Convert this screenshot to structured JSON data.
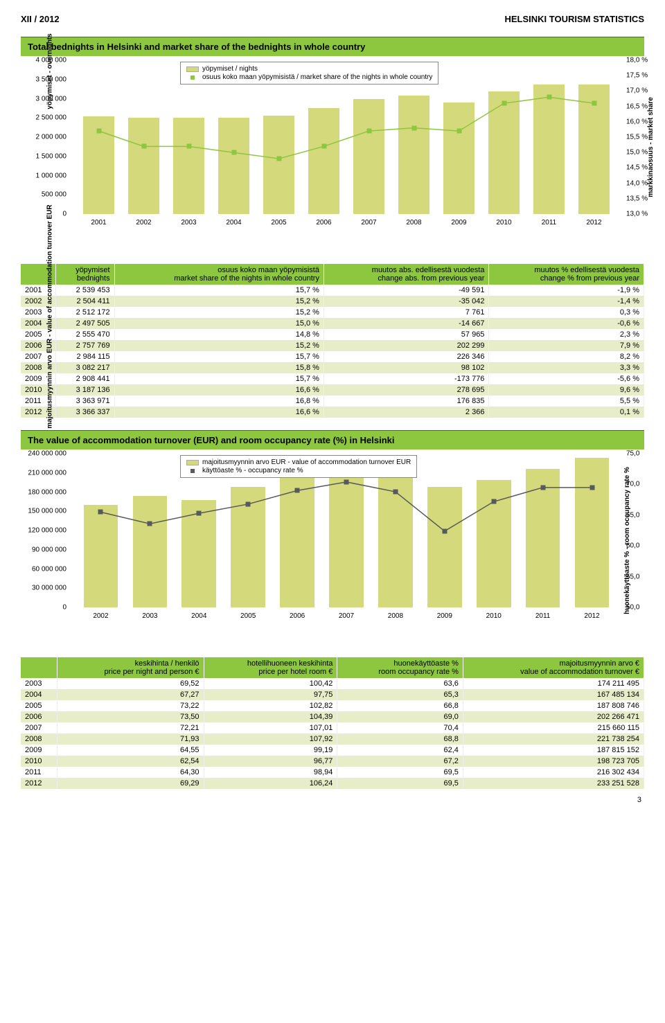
{
  "header": {
    "left": "XII / 2012",
    "right": "HELSINKI TOURISM STATISTICS"
  },
  "section1": {
    "title": "Total bednights in Helsinki and market share of the bednights in whole country",
    "chart": {
      "type": "bar+line",
      "years": [
        "2001",
        "2002",
        "2003",
        "2004",
        "2005",
        "2006",
        "2007",
        "2008",
        "2009",
        "2010",
        "2011",
        "2012"
      ],
      "bars": [
        2539453,
        2504411,
        2512172,
        2497505,
        2555470,
        2757769,
        2984115,
        3082217,
        2908441,
        3187136,
        3363971,
        3366337
      ],
      "line_pct": [
        15.7,
        15.2,
        15.2,
        15.0,
        14.8,
        15.2,
        15.7,
        15.8,
        15.7,
        16.6,
        16.8,
        16.6
      ],
      "y_left_max": 4000000,
      "y_left_step": 500000,
      "y_left_ticks": [
        "0",
        "500 000",
        "1 000 000",
        "1 500 000",
        "2 000 000",
        "2 500 000",
        "3 000 000",
        "3 500 000",
        "4 000 000"
      ],
      "y_right_min": 13.0,
      "y_right_max": 18.0,
      "y_right_step": 0.5,
      "y_right_ticks": [
        "13,0 %",
        "13,5 %",
        "14,0 %",
        "14,5 %",
        "15,0 %",
        "15,5 %",
        "16,0 %",
        "16,5 %",
        "17,0 %",
        "17,5 %",
        "18,0 %"
      ],
      "bar_color": "#d4d97b",
      "marker_color": "#8dc63f",
      "line_color": "#8dc63f",
      "y_left_title": "yöpymiset - overnights",
      "y_right_title": "markkinaosuus - market share",
      "legend1": "yöpymiset / nights",
      "legend2": "osuus koko maan yöpymisistä / market share of the nights in whole country"
    },
    "table": {
      "headers": [
        "",
        "yöpymiset\nbednights",
        "osuus koko maan yöpymisistä\nmarket share of the nights in whole country",
        "muutos abs. edellisestä vuodesta\nchange abs. from previous year",
        "muutos % edellisestä vuodesta\nchange % from previous year"
      ],
      "rows": [
        [
          "2001",
          "2 539 453",
          "15,7 %",
          "-49 591",
          "-1,9 %"
        ],
        [
          "2002",
          "2 504 411",
          "15,2 %",
          "-35 042",
          "-1,4 %"
        ],
        [
          "2003",
          "2 512 172",
          "15,2 %",
          "7 761",
          "0,3 %"
        ],
        [
          "2004",
          "2 497 505",
          "15,0 %",
          "-14 667",
          "-0,6 %"
        ],
        [
          "2005",
          "2 555 470",
          "14,8 %",
          "57 965",
          "2,3 %"
        ],
        [
          "2006",
          "2 757 769",
          "15,2 %",
          "202 299",
          "7,9 %"
        ],
        [
          "2007",
          "2 984 115",
          "15,7 %",
          "226 346",
          "8,2 %"
        ],
        [
          "2008",
          "3 082 217",
          "15,8 %",
          "98 102",
          "3,3 %"
        ],
        [
          "2009",
          "2 908 441",
          "15,7 %",
          "-173 776",
          "-5,6 %"
        ],
        [
          "2010",
          "3 187 136",
          "16,6 %",
          "278 695",
          "9,6 %"
        ],
        [
          "2011",
          "3 363 971",
          "16,8 %",
          "176 835",
          "5,5 %"
        ],
        [
          "2012",
          "3 366 337",
          "16,6 %",
          "2 366",
          "0,1 %"
        ]
      ]
    }
  },
  "section2": {
    "title": "The value of accommodation turnover (EUR) and room occupancy rate (%) in Helsinki",
    "chart": {
      "type": "bar+line",
      "years": [
        "2002",
        "2003",
        "2004",
        "2005",
        "2006",
        "2007",
        "2008",
        "2009",
        "2010",
        "2011",
        "2012"
      ],
      "bars": [
        160000000,
        174211495,
        167485134,
        187808746,
        202266471,
        215660115,
        221738254,
        187815152,
        198723705,
        216302434,
        233251528
      ],
      "line_pct": [
        65.5,
        63.6,
        65.3,
        66.8,
        69.0,
        70.4,
        68.8,
        62.4,
        67.2,
        69.5,
        69.5
      ],
      "y_left_max": 240000000,
      "y_left_step": 30000000,
      "y_left_ticks": [
        "0",
        "30 000 000",
        "60 000 000",
        "90 000 000",
        "120 000 000",
        "150 000 000",
        "180 000 000",
        "210 000 000",
        "240 000 000"
      ],
      "y_right_min": 50.0,
      "y_right_max": 75.0,
      "y_right_step": 5.0,
      "y_right_ticks": [
        "50,0",
        "55,0",
        "60,0",
        "65,0",
        "70,0",
        "75,0"
      ],
      "bar_color": "#d4d97b",
      "marker_color": "#58595b",
      "line_color": "#58595b",
      "y_left_title": "majoitusmyynnin arvo EUR - value of accommodation\nturnover EUR",
      "y_right_title": "huonekäyttöaste % - room occupancy rate %",
      "legend1": "majoitusmyynnin arvo EUR - value of accommodation turnover EUR",
      "legend2": "käyttöaste % - occupancy rate %"
    },
    "table": {
      "headers": [
        "",
        "keskihinta / henkilö\nprice per night and person €",
        "hotellihuoneen keskihinta\nprice per hotel room €",
        "huonekäyttöaste %\nroom occupancy rate %",
        "majoitusmyynnin arvo €\nvalue of accommodation turnover €"
      ],
      "rows": [
        [
          "2003",
          "69,52",
          "100,42",
          "63,6",
          "174 211 495"
        ],
        [
          "2004",
          "67,27",
          "97,75",
          "65,3",
          "167 485 134"
        ],
        [
          "2005",
          "73,22",
          "102,82",
          "66,8",
          "187 808 746"
        ],
        [
          "2006",
          "73,50",
          "104,39",
          "69,0",
          "202 266 471"
        ],
        [
          "2007",
          "72,21",
          "107,01",
          "70,4",
          "215 660 115"
        ],
        [
          "2008",
          "71,93",
          "107,92",
          "68,8",
          "221 738 254"
        ],
        [
          "2009",
          "64,55",
          "99,19",
          "62,4",
          "187 815 152"
        ],
        [
          "2010",
          "62,54",
          "96,77",
          "67,2",
          "198 723 705"
        ],
        [
          "2011",
          "64,30",
          "98,94",
          "69,5",
          "216 302 434"
        ],
        [
          "2012",
          "69,29",
          "106,24",
          "69,5",
          "233 251 528"
        ]
      ]
    }
  },
  "page_number": "3"
}
